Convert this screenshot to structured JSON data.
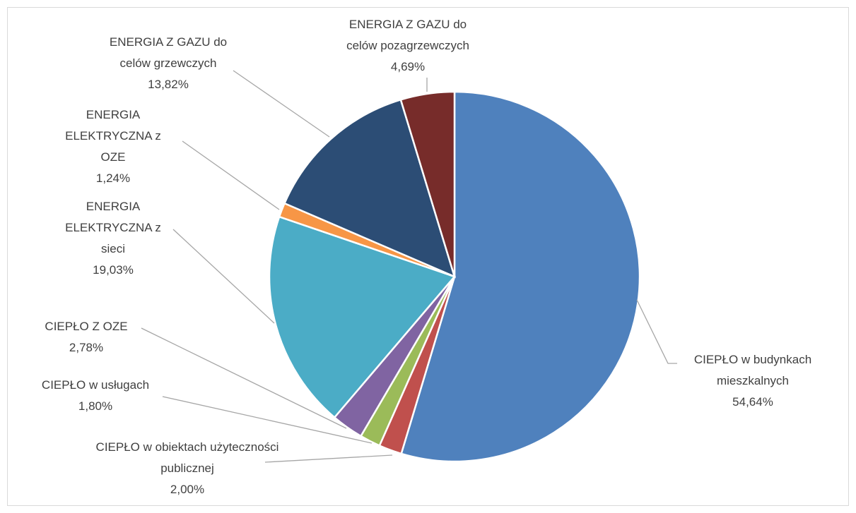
{
  "chart_data": {
    "type": "pie",
    "categories": [
      "CIEPŁO w budynkach mieszkalnych",
      "CIEPŁO w obiektach użyteczności publicznej",
      "CIEPŁO w usługach",
      "CIEPŁO Z OZE",
      "ENERGIA ELEKTRYCZNA z sieci",
      "ENERGIA ELEKTRYCZNA z OZE",
      "ENERGIA Z GAZU do celów grzewczych",
      "ENERGIA Z GAZU do celów pozagrzewczych"
    ],
    "values": [
      54.64,
      2.0,
      1.8,
      2.78,
      19.03,
      1.24,
      13.82,
      4.69
    ],
    "value_labels": [
      "54,64%",
      "2,00%",
      "1,80%",
      "2,78%",
      "19,03%",
      "1,24%",
      "13,82%",
      "4,69%"
    ],
    "colors": [
      "#4f81bd",
      "#c0504d",
      "#9bbb59",
      "#8064a2",
      "#4bacc6",
      "#f79646",
      "#2c4d75",
      "#772c2a"
    ]
  }
}
